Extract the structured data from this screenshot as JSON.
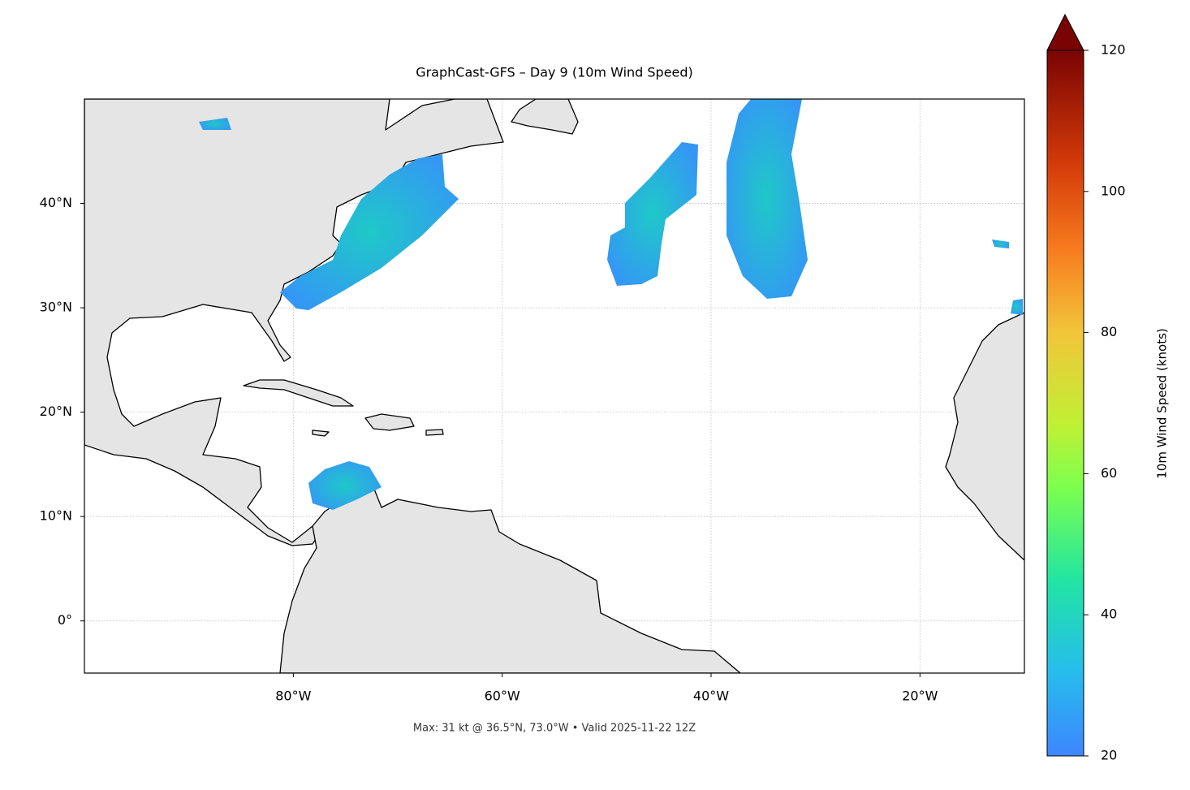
{
  "title": "GraphCast-GFS – Day 9 (10m Wind Speed)",
  "map": {
    "xlim": [
      -100,
      -10
    ],
    "ylim": [
      -5,
      50
    ],
    "xticks": [
      {
        "value": -80,
        "label": "80°W"
      },
      {
        "value": -60,
        "label": "60°W"
      },
      {
        "value": -40,
        "label": "40°W"
      },
      {
        "value": -20,
        "label": "20°W"
      }
    ],
    "yticks": [
      {
        "value": 0,
        "label": "0°"
      },
      {
        "value": 10,
        "label": "10°N"
      },
      {
        "value": 20,
        "label": "20°N"
      },
      {
        "value": 30,
        "label": "30°N"
      },
      {
        "value": 40,
        "label": "40°N"
      }
    ],
    "grid": true
  },
  "colorbar": {
    "label": "10m Wind Speed (knots)",
    "lim": [
      20,
      120
    ],
    "ticks": [
      20,
      40,
      60,
      80,
      100,
      120
    ]
  },
  "footer": "Max: 31 kt @ 36.5°N, 73.0°W • Valid 2025-11-22 12Z"
}
